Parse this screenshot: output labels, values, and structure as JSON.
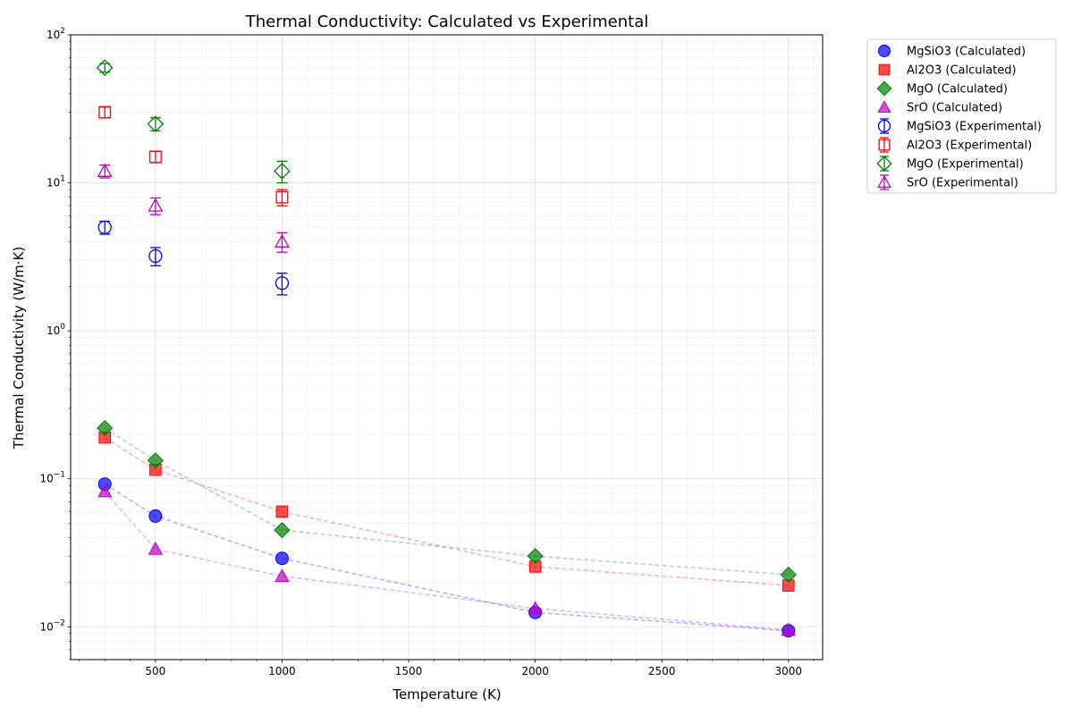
{
  "chart_data": {
    "type": "scatter",
    "title": "Thermal Conductivity: Calculated vs Experimental",
    "xlabel": "Temperature (K)",
    "ylabel": "Thermal Conductivity (W/m·K)",
    "xlim": [
      165,
      3135
    ],
    "ylim": [
      0.006,
      100
    ],
    "yscale": "log",
    "grid": true,
    "legend_position": "outside-top-right",
    "x_ticks": [
      500,
      1000,
      1500,
      2000,
      2500,
      3000
    ],
    "x_tick_labels": [
      "500",
      "1000",
      "1500",
      "2000",
      "2500",
      "3000"
    ],
    "y_ticks": [
      0.01,
      0.1,
      1,
      10,
      100
    ],
    "y_tick_labels": [
      {
        "base": "10",
        "exp": "−2"
      },
      {
        "base": "10",
        "exp": "−1"
      },
      {
        "base": "10",
        "exp": "0"
      },
      {
        "base": "10",
        "exp": "1"
      },
      {
        "base": "10",
        "exp": "2"
      }
    ],
    "series": [
      {
        "name": "MgSiO3 (Calculated)",
        "kind": "calculated",
        "marker": "circle",
        "color": "#0000ff",
        "x": [
          300,
          500,
          1000,
          2000,
          3000
        ],
        "y": [
          0.092,
          0.056,
          0.029,
          0.0125,
          0.0094
        ]
      },
      {
        "name": "Al2O3 (Calculated)",
        "kind": "calculated",
        "marker": "square",
        "color": "#ff0000",
        "x": [
          300,
          500,
          1000,
          2000,
          3000
        ],
        "y": [
          0.19,
          0.115,
          0.06,
          0.0255,
          0.019
        ]
      },
      {
        "name": "MgO (Calculated)",
        "kind": "calculated",
        "marker": "diamond",
        "color": "#008000",
        "x": [
          300,
          500,
          1000,
          2000,
          3000
        ],
        "y": [
          0.22,
          0.133,
          0.045,
          0.03,
          0.0225
        ]
      },
      {
        "name": "SrO (Calculated)",
        "kind": "calculated",
        "marker": "triangle",
        "color": "#bf00bf",
        "x": [
          300,
          500,
          1000,
          2000,
          3000
        ],
        "y": [
          0.082,
          0.0335,
          0.022,
          0.0133,
          0.0095
        ]
      },
      {
        "name": "MgSiO3 (Experimental)",
        "kind": "experimental",
        "marker": "circle",
        "color": "#0000ff",
        "x": [
          300,
          500,
          1000
        ],
        "y": [
          5.0,
          3.2,
          2.1
        ],
        "err": [
          0.5,
          0.45,
          0.35
        ]
      },
      {
        "name": "Al2O3 (Experimental)",
        "kind": "experimental",
        "marker": "square",
        "color": "#ff0000",
        "x": [
          300,
          500,
          1000
        ],
        "y": [
          30,
          15,
          8
        ],
        "err": [
          2.5,
          1.3,
          1.0
        ]
      },
      {
        "name": "MgO (Experimental)",
        "kind": "experimental",
        "marker": "diamond",
        "color": "#008000",
        "x": [
          300,
          500,
          1000
        ],
        "y": [
          60,
          25,
          12
        ],
        "err": [
          4,
          2.5,
          2
        ]
      },
      {
        "name": "SrO (Experimental)",
        "kind": "experimental",
        "marker": "triangle",
        "color": "#bf00bf",
        "x": [
          300,
          500,
          1000
        ],
        "y": [
          12,
          7,
          4
        ],
        "err": [
          1.2,
          0.9,
          0.6
        ]
      }
    ]
  }
}
